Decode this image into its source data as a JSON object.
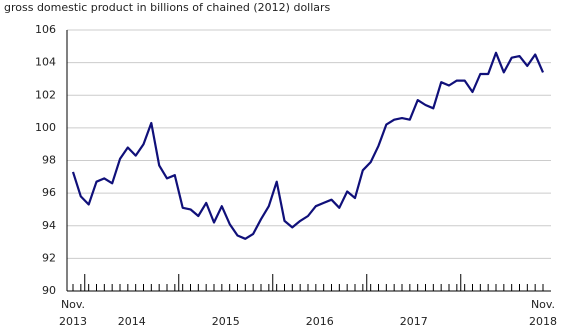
{
  "chart_data": {
    "type": "line",
    "title": "gross domestic product in billions of chained (2012) dollars",
    "x_labels": [
      [
        "Nov.",
        "2013"
      ],
      [
        "2014"
      ],
      [
        "2015"
      ],
      [
        "2016"
      ],
      [
        "2017"
      ],
      [
        "Nov.",
        "2018"
      ]
    ],
    "values": [
      97.3,
      95.8,
      95.3,
      96.7,
      96.9,
      96.6,
      98.1,
      98.8,
      98.3,
      99.0,
      100.3,
      97.7,
      96.9,
      97.1,
      95.1,
      95.0,
      94.6,
      95.4,
      94.2,
      95.2,
      94.1,
      93.4,
      93.2,
      93.5,
      94.4,
      95.2,
      96.7,
      94.3,
      93.9,
      94.3,
      94.6,
      95.2,
      95.4,
      95.6,
      95.1,
      96.1,
      95.7,
      97.4,
      97.9,
      98.9,
      100.2,
      100.5,
      100.6,
      100.5,
      101.7,
      101.4,
      101.2,
      102.8,
      102.6,
      102.9,
      102.9,
      102.2,
      103.3,
      103.3,
      104.6,
      103.4,
      104.3,
      104.4,
      103.8,
      104.5,
      103.4
    ],
    "color": "#10107a",
    "ylim": [
      90,
      106
    ],
    "yticks": [
      90,
      92,
      94,
      96,
      98,
      100,
      102,
      104,
      106
    ],
    "grid": true
  }
}
